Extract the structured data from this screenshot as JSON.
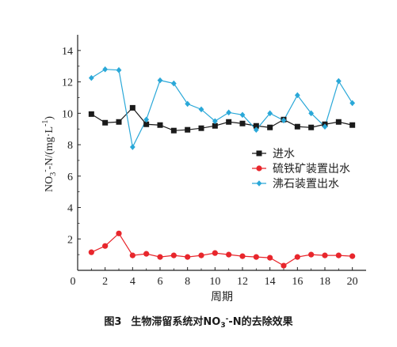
{
  "chart_data": {
    "type": "line",
    "x": [
      1,
      2,
      3,
      4,
      5,
      6,
      7,
      8,
      9,
      10,
      11,
      12,
      13,
      14,
      15,
      16,
      17,
      18,
      19,
      20
    ],
    "xlabel": "周期",
    "ylabel": {
      "prefix": "NO",
      "sub": "3",
      "sup": "-",
      "rest": "-N/(mg·L",
      "sup2": "-1",
      "close": ")"
    },
    "xlim": [
      0,
      21
    ],
    "ylim": [
      0,
      15
    ],
    "xticks": [
      "0",
      "2",
      "4",
      "6",
      "8",
      "10",
      "12",
      "14",
      "16",
      "18",
      "20"
    ],
    "yticks": [
      "2",
      "4",
      "6",
      "8",
      "10",
      "12",
      "14"
    ],
    "grid": false,
    "legend_position": "right-middle",
    "series": [
      {
        "name": "进水",
        "color": "#1a1a1a",
        "marker": "square",
        "values": [
          9.95,
          9.4,
          9.45,
          10.35,
          9.3,
          9.25,
          8.9,
          8.95,
          9.05,
          9.2,
          9.45,
          9.35,
          9.2,
          9.1,
          9.6,
          9.15,
          9.1,
          9.3,
          9.45,
          9.25
        ]
      },
      {
        "name": "硫铁矿装置出水",
        "color": "#e8262c",
        "marker": "circle",
        "values": [
          1.15,
          1.55,
          2.35,
          0.95,
          1.05,
          0.85,
          0.95,
          0.85,
          0.95,
          1.1,
          1.0,
          0.9,
          0.85,
          0.8,
          0.3,
          0.85,
          1.0,
          0.95,
          0.95,
          0.9
        ]
      },
      {
        "name": "沸石装置出水",
        "color": "#2aa8d8",
        "marker": "diamond",
        "values": [
          12.25,
          12.8,
          12.75,
          7.85,
          9.6,
          12.1,
          11.9,
          10.6,
          10.25,
          9.5,
          10.05,
          9.9,
          8.95,
          10.0,
          9.55,
          11.15,
          10.0,
          9.15,
          12.05,
          10.65
        ]
      }
    ]
  },
  "caption": {
    "fig_no": "图3",
    "text_a": "生物滞留系统对NO",
    "sub": "3",
    "sup": "-",
    "text_b": "-N的去除效果"
  }
}
